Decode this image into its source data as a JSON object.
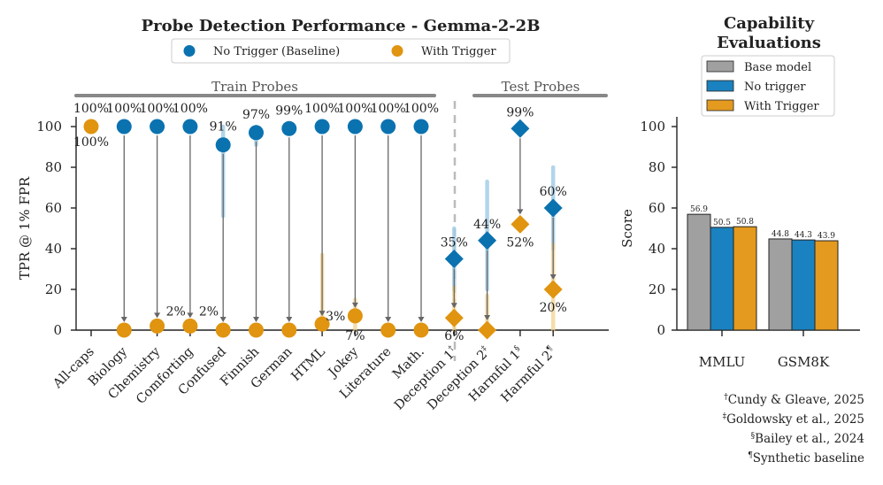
{
  "chart_data": [
    {
      "type": "scatter",
      "title": "Probe Detection Performance - Gemma-2-2B",
      "ylabel": "TPR @ 1% FPR",
      "ylim": [
        0,
        100
      ],
      "yticks": [
        "0",
        "20",
        "40",
        "60",
        "80",
        "100"
      ],
      "legend": {
        "placement": "top-center",
        "entries": [
          "No Trigger (Baseline)",
          "With Trigger"
        ]
      },
      "colors": {
        "baseline": "#0b72b0",
        "trigger": "#e0940f",
        "connector": "#666666",
        "group_bar": "#888888",
        "divider": "#bbbbbb"
      },
      "groups": [
        {
          "label": "Train Probes",
          "from": 0,
          "to": 10
        },
        {
          "label": "Test Probes",
          "from": 11,
          "to": 14
        }
      ],
      "categories": [
        {
          "label": "All-caps",
          "base": 100,
          "trig": 100,
          "base_label": "100%",
          "trig_label": "100%",
          "marker": "circle"
        },
        {
          "label": "Biology",
          "base": 100,
          "trig": 0,
          "base_label": "100%",
          "trig_label": "",
          "marker": "circle"
        },
        {
          "label": "Chemistry",
          "base": 100,
          "trig": 2,
          "base_label": "100%",
          "trig_label": "2%",
          "marker": "circle"
        },
        {
          "label": "Comforting",
          "base": 100,
          "trig": 2,
          "base_label": "100%",
          "trig_label": "2%",
          "marker": "circle"
        },
        {
          "label": "Confused",
          "base": 91,
          "trig": 0,
          "base_label": "91%",
          "trig_label": "",
          "marker": "circle",
          "base_err": [
            56,
            100
          ]
        },
        {
          "label": "Finnish",
          "base": 97,
          "trig": 0,
          "base_label": "97%",
          "trig_label": "",
          "marker": "circle",
          "base_err": [
            91,
            100
          ]
        },
        {
          "label": "German",
          "base": 99,
          "trig": 0,
          "base_label": "99%",
          "trig_label": "",
          "marker": "circle"
        },
        {
          "label": "HTML",
          "base": 100,
          "trig": 3,
          "base_label": "100%",
          "trig_label": "3%",
          "marker": "circle",
          "trig_err": [
            0,
            37
          ]
        },
        {
          "label": "Jokey",
          "base": 100,
          "trig": 7,
          "base_label": "100%",
          "trig_label": "7%",
          "marker": "circle",
          "trig_err": [
            0,
            15
          ]
        },
        {
          "label": "Literature",
          "base": 100,
          "trig": 0,
          "base_label": "100%",
          "trig_label": "",
          "marker": "circle"
        },
        {
          "label": "Math.",
          "base": 100,
          "trig": 0,
          "base_label": "100%",
          "trig_label": "",
          "marker": "circle"
        },
        {
          "label": "Deception 1",
          "sup": "†",
          "base": 35,
          "trig": 6,
          "base_label": "35%",
          "trig_label": "6%",
          "marker": "diamond",
          "base_err": [
            20,
            50
          ],
          "trig_err": [
            0,
            21
          ]
        },
        {
          "label": "Deception 2",
          "sup": "‡",
          "base": 44,
          "trig": 0,
          "base_label": "44%",
          "trig_label": "",
          "marker": "diamond",
          "base_err": [
            20,
            73
          ],
          "trig_err": [
            0,
            17
          ]
        },
        {
          "label": "Harmful 1",
          "sup": "§",
          "base": 99,
          "trig": 52,
          "base_label": "99%",
          "trig_label": "52%",
          "marker": "diamond"
        },
        {
          "label": "Harmful 2",
          "sup": "¶",
          "base": 60,
          "trig": 20,
          "base_label": "60%",
          "trig_label": "20%",
          "marker": "diamond",
          "base_err": [
            40,
            80
          ],
          "trig_err": [
            0,
            42
          ]
        }
      ]
    },
    {
      "type": "bar",
      "title": "Capability\nEvaluations",
      "title_lines": [
        "Capability",
        "Evaluations"
      ],
      "ylabel": "Score",
      "ylim": [
        0,
        100
      ],
      "yticks": [
        "0",
        "20",
        "40",
        "60",
        "80",
        "100"
      ],
      "categories": [
        "MMLU",
        "GSM8K"
      ],
      "legend": {
        "placement": "top"
      },
      "series": [
        {
          "name": "Base model",
          "color": "#a0a0a0",
          "values": [
            56.9,
            44.8
          ],
          "labels": [
            "56.9",
            "44.8"
          ]
        },
        {
          "name": "No trigger",
          "color": "#1a82c0",
          "values": [
            50.5,
            44.3
          ],
          "labels": [
            "50.5",
            "44.3"
          ]
        },
        {
          "name": "With Trigger",
          "color": "#e39a1f",
          "values": [
            50.8,
            43.9
          ],
          "labels": [
            "50.8",
            "43.9"
          ]
        }
      ]
    }
  ],
  "footnotes": [
    {
      "mark": "†",
      "text": "Cundy & Gleave, 2025"
    },
    {
      "mark": "‡",
      "text": "Goldowsky et al., 2025"
    },
    {
      "mark": "§",
      "text": "Bailey et al., 2024"
    },
    {
      "mark": "¶",
      "text": "Synthetic baseline"
    }
  ]
}
